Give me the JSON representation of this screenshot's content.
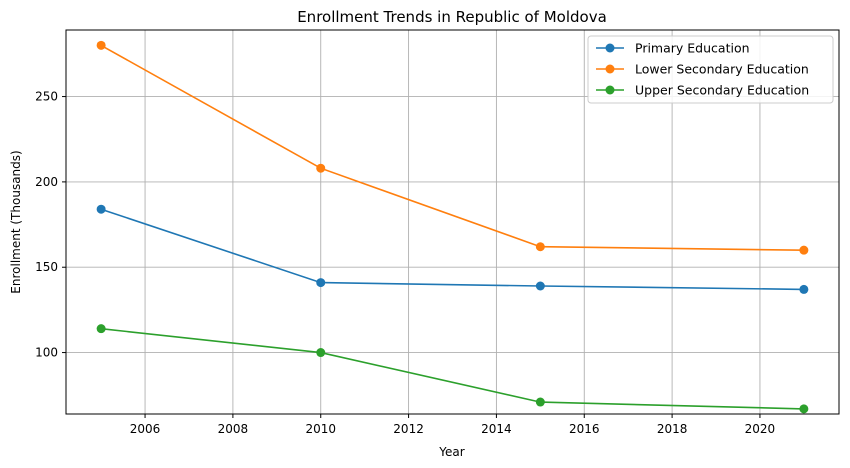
{
  "chart_data": {
    "type": "line",
    "title": "Enrollment Trends in Republic of Moldova",
    "xlabel": "Year",
    "ylabel": "Enrollment (Thousands)",
    "x": [
      2005,
      2010,
      2015,
      2021
    ],
    "xlim": [
      2004.2,
      2021.8
    ],
    "ylim": [
      64,
      289
    ],
    "xticks": [
      2006,
      2008,
      2010,
      2012,
      2014,
      2016,
      2018,
      2020
    ],
    "yticks": [
      100,
      150,
      200,
      250
    ],
    "grid": true,
    "legend_position": "top-right",
    "series": [
      {
        "name": "Primary Education",
        "color": "#1f77b4",
        "values": [
          184,
          141,
          139,
          137
        ]
      },
      {
        "name": "Lower Secondary Education",
        "color": "#ff7f0e",
        "values": [
          280,
          208,
          162,
          160
        ]
      },
      {
        "name": "Upper Secondary Education",
        "color": "#2ca02c",
        "values": [
          114,
          100,
          71,
          67
        ]
      }
    ]
  }
}
